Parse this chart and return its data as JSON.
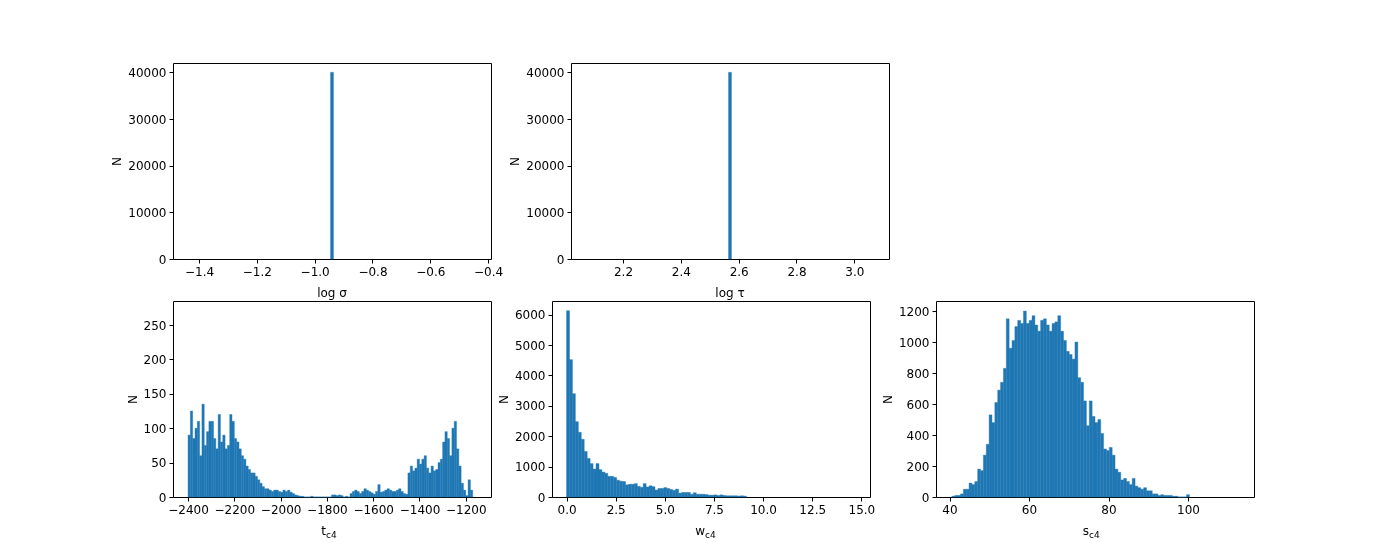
{
  "chart_data": [
    {
      "type": "histogram",
      "xlabel": "log σ",
      "ylabel": "N",
      "color": "#1f77b4",
      "bins": [
        -0.945,
        -0.935
      ],
      "values": [
        40000
      ],
      "xlim": [
        -1.49,
        -0.39
      ],
      "ylim": [
        0,
        42000
      ],
      "xticks": [
        {
          "value": -1.4,
          "label": "−1.4"
        },
        {
          "value": -1.2,
          "label": "−1.2"
        },
        {
          "value": -1.0,
          "label": "−1.0"
        },
        {
          "value": -0.8,
          "label": "−0.8"
        },
        {
          "value": -0.6,
          "label": "−0.6"
        },
        {
          "value": -0.4,
          "label": "−0.4"
        }
      ],
      "yticks": [
        0,
        10000,
        20000,
        30000,
        40000
      ]
    },
    {
      "type": "histogram",
      "xlabel": "log τ",
      "ylabel": "N",
      "color": "#1f77b4",
      "bins": [
        2.565,
        2.575
      ],
      "values": [
        40000
      ],
      "xlim": [
        2.02,
        3.12
      ],
      "ylim": [
        0,
        42000
      ],
      "xticks": [
        {
          "value": 2.2,
          "label": "2.2"
        },
        {
          "value": 2.4,
          "label": "2.4"
        },
        {
          "value": 2.6,
          "label": "2.6"
        },
        {
          "value": 2.8,
          "label": "2.8"
        },
        {
          "value": 3.0,
          "label": "3.0"
        }
      ],
      "yticks": [
        0,
        10000,
        20000,
        30000,
        40000
      ]
    },
    {
      "type": "histogram",
      "xlabel": "t$_{c4}$",
      "ylabel": "N",
      "color": "#1f77b4",
      "bins": [
        -2400,
        -2390,
        -2380,
        -2370,
        -2360,
        -2350,
        -2340,
        -2330,
        -2320,
        -2310,
        -2300,
        -2290,
        -2280,
        -2270,
        -2260,
        -2250,
        -2240,
        -2230,
        -2220,
        -2210,
        -2200,
        -2190,
        -2180,
        -2170,
        -2160,
        -2150,
        -2140,
        -2130,
        -2120,
        -2110,
        -2100,
        -2090,
        -2080,
        -2070,
        -2060,
        -2050,
        -2040,
        -2030,
        -2020,
        -2010,
        -2000,
        -1990,
        -1980,
        -1970,
        -1960,
        -1950,
        -1940,
        -1930,
        -1920,
        -1910,
        -1900,
        -1870,
        -1860,
        -1780,
        -1770,
        -1760,
        -1750,
        -1740,
        -1730,
        -1720,
        -1710,
        -1700,
        -1690,
        -1680,
        -1670,
        -1660,
        -1650,
        -1640,
        -1630,
        -1620,
        -1610,
        -1600,
        -1590,
        -1580,
        -1570,
        -1560,
        -1550,
        -1540,
        -1530,
        -1520,
        -1510,
        -1500,
        -1490,
        -1480,
        -1470,
        -1460,
        -1450,
        -1440,
        -1430,
        -1420,
        -1410,
        -1400,
        -1390,
        -1380,
        -1370,
        -1360,
        -1350,
        -1340,
        -1330,
        -1320,
        -1310,
        -1300,
        -1290,
        -1280,
        -1270,
        -1260,
        -1250,
        -1240,
        -1230,
        -1220,
        -1210,
        -1200,
        -1190,
        -1180,
        -1170
      ],
      "values": [
        90,
        125,
        85,
        100,
        110,
        60,
        135,
        75,
        95,
        110,
        110,
        85,
        70,
        120,
        80,
        90,
        70,
        75,
        120,
        110,
        85,
        80,
        70,
        60,
        55,
        45,
        40,
        35,
        35,
        30,
        25,
        20,
        15,
        12,
        12,
        10,
        8,
        10,
        10,
        8,
        7,
        10,
        8,
        10,
        7,
        5,
        3,
        2,
        1,
        1,
        0,
        1,
        0,
        3,
        3,
        2,
        3,
        2,
        0,
        1,
        0,
        5,
        8,
        10,
        8,
        5,
        8,
        12,
        10,
        8,
        6,
        4,
        8,
        18,
        7,
        8,
        10,
        12,
        10,
        8,
        8,
        10,
        12,
        8,
        5,
        4,
        35,
        45,
        38,
        42,
        55,
        48,
        55,
        60,
        42,
        35,
        45,
        38,
        40,
        50,
        55,
        80,
        95,
        85,
        60,
        100,
        110,
        70,
        45,
        20,
        10,
        2,
        25,
        10
      ],
      "xlim": [
        -2465,
        -1091
      ],
      "ylim": [
        0,
        285
      ],
      "xticks": [
        {
          "value": -2400,
          "label": "−2400"
        },
        {
          "value": -2200,
          "label": "−2200"
        },
        {
          "value": -2000,
          "label": "−2000"
        },
        {
          "value": -1800,
          "label": "−1800"
        },
        {
          "value": -1600,
          "label": "−1600"
        },
        {
          "value": -1400,
          "label": "−1400"
        },
        {
          "value": -1200,
          "label": "−1200"
        }
      ],
      "yticks": [
        0,
        50,
        100,
        150,
        200,
        250
      ]
    },
    {
      "type": "histogram",
      "xlabel": "w$_{c4}$",
      "ylabel": "N",
      "color": "#1f77b4",
      "bins": [
        0,
        0.15,
        0.3,
        0.45,
        0.6,
        0.75,
        0.9,
        1.05,
        1.2,
        1.35,
        1.5,
        1.65,
        1.8,
        1.95,
        2.1,
        2.25,
        2.4,
        2.55,
        2.7,
        2.85,
        3,
        3.15,
        3.3,
        3.45,
        3.6,
        3.75,
        3.9,
        4.05,
        4.2,
        4.35,
        4.5,
        4.65,
        4.8,
        4.95,
        5.1,
        5.25,
        5.4,
        5.55,
        5.7,
        5.85,
        6,
        6.15,
        6.3,
        6.45,
        6.6,
        6.75,
        6.9,
        7.05,
        7.2,
        7.35,
        7.5,
        7.65,
        7.8,
        7.95,
        8.1,
        8.25,
        8.4,
        8.55,
        8.7,
        8.85,
        9,
        9.15
      ],
      "values": [
        6130,
        4520,
        3400,
        2480,
        2130,
        1900,
        1500,
        1270,
        1100,
        920,
        1100,
        900,
        820,
        780,
        680,
        680,
        640,
        550,
        520,
        510,
        400,
        420,
        420,
        440,
        350,
        320,
        440,
        330,
        370,
        340,
        230,
        280,
        280,
        310,
        280,
        250,
        220,
        260,
        130,
        150,
        150,
        150,
        90,
        140,
        90,
        90,
        90,
        80,
        60,
        60,
        70,
        50,
        70,
        50,
        40,
        40,
        40,
        40,
        30,
        40,
        30
      ],
      "xlim": [
        -0.74,
        15.44
      ],
      "ylim": [
        0,
        6450
      ],
      "xticks": [
        {
          "value": 0,
          "label": "0.0"
        },
        {
          "value": 2.5,
          "label": "2.5"
        },
        {
          "value": 5,
          "label": "5.0"
        },
        {
          "value": 7.5,
          "label": "7.5"
        },
        {
          "value": 10,
          "label": "10.0"
        },
        {
          "value": 12.5,
          "label": "12.5"
        },
        {
          "value": 15,
          "label": "15.0"
        }
      ],
      "yticks": [
        0,
        1000,
        2000,
        3000,
        4000,
        5000,
        6000
      ]
    },
    {
      "type": "histogram",
      "xlabel": "s$_{c4}$",
      "ylabel": "N",
      "color": "#1f77b4",
      "bins": [
        40.6,
        41.32,
        42.04,
        42.76,
        43.48,
        44.2,
        44.92,
        45.64,
        46.36,
        47.08,
        47.8,
        48.52,
        49.24,
        49.96,
        50.68,
        51.4,
        52.12,
        52.84,
        53.56,
        54.28,
        55,
        55.72,
        56.44,
        57.16,
        57.88,
        58.6,
        59.32,
        60.04,
        60.76,
        61.48,
        62.2,
        62.92,
        63.64,
        64.36,
        65.08,
        65.8,
        66.52,
        67.24,
        67.96,
        68.68,
        69.4,
        70.12,
        70.84,
        71.56,
        72.28,
        73,
        73.72,
        74.44,
        75.16,
        75.88,
        76.6,
        77.32,
        78.04,
        78.76,
        79.48,
        80.2,
        80.92,
        81.64,
        82.36,
        83.08,
        83.8,
        84.52,
        85.24,
        85.96,
        86.68,
        87.4,
        88.12,
        88.84,
        89.56,
        90.28,
        91,
        91.72,
        92.44,
        93.16,
        93.88,
        94.6,
        95.32,
        96.04,
        96.76,
        97.48,
        99.64,
        100.36
      ],
      "values": [
        5,
        10,
        10,
        20,
        50,
        50,
        90,
        80,
        100,
        180,
        170,
        270,
        340,
        530,
        480,
        610,
        690,
        740,
        830,
        1150,
        960,
        1010,
        1100,
        1140,
        1120,
        1200,
        1120,
        1140,
        1170,
        1110,
        1070,
        1140,
        1150,
        1110,
        1070,
        1120,
        1130,
        1170,
        1070,
        1010,
        940,
        920,
        890,
        1000,
        770,
        740,
        620,
        460,
        620,
        520,
        480,
        500,
        410,
        310,
        300,
        320,
        270,
        180,
        160,
        110,
        120,
        100,
        80,
        120,
        70,
        60,
        50,
        60,
        40,
        40,
        20,
        20,
        10,
        15,
        10,
        10,
        10,
        5,
        5,
        0,
        15
      ],
      "xlim": [
        36.6,
        116.6
      ],
      "ylim": [
        0,
        1265
      ],
      "xticks": [
        40,
        60,
        80,
        100
      ],
      "yticks": [
        0,
        200,
        400,
        600,
        800,
        1000,
        1200
      ]
    }
  ]
}
